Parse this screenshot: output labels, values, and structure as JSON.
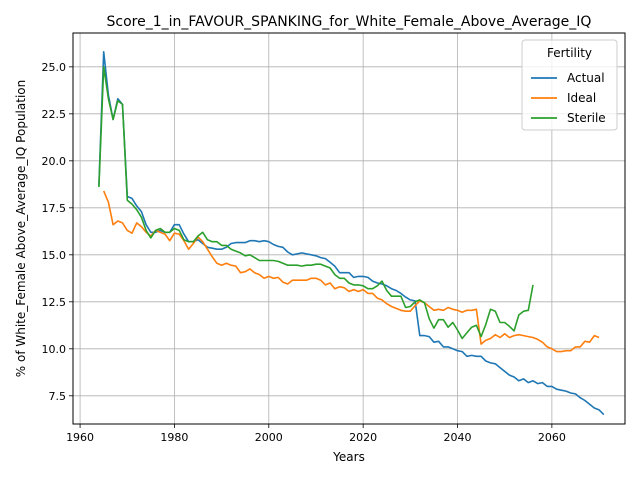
{
  "chart_data": {
    "type": "line",
    "title": "Score_1_in_FAVOUR_SPANKING_for_White_Female_Above_Average_IQ",
    "xlabel": "Years",
    "ylabel": "% of White_Female Above_Average_IQ Population",
    "xlim": [
      1958.5,
      2075.5
    ],
    "ylim": [
      6.0,
      26.8
    ],
    "xticks": [
      1960,
      1980,
      2000,
      2020,
      2040,
      2060
    ],
    "yticks": [
      7.5,
      10.0,
      12.5,
      15.0,
      17.5,
      20.0,
      22.5,
      25.0
    ],
    "ytick_labels": [
      "7.5",
      "10.0",
      "12.5",
      "15.0",
      "17.5",
      "20.0",
      "22.5",
      "25.0"
    ],
    "grid": true,
    "legend": {
      "title": "Fertility",
      "placement": "top-right"
    },
    "series": [
      {
        "name": "Actual",
        "color": "#1f77b4",
        "points": [
          [
            1964,
            18.7
          ],
          [
            1965,
            25.8
          ],
          [
            1966,
            23.5
          ],
          [
            1967,
            22.2
          ],
          [
            1968,
            23.3
          ],
          [
            1969,
            23.0
          ],
          [
            1970,
            18.1
          ],
          [
            1971,
            18.0
          ],
          [
            1972,
            17.6
          ],
          [
            1973,
            17.3
          ],
          [
            1974,
            16.6
          ],
          [
            1975,
            16.2
          ],
          [
            1976,
            16.2
          ],
          [
            1977,
            16.3
          ],
          [
            1978,
            16.2
          ],
          [
            1979,
            16.2
          ],
          [
            1980,
            16.6
          ],
          [
            1981,
            16.6
          ],
          [
            1982,
            16.1
          ],
          [
            1983,
            15.7
          ],
          [
            1984,
            15.7
          ],
          [
            1985,
            15.8
          ],
          [
            1986,
            15.6
          ],
          [
            1987,
            15.4
          ],
          [
            1988,
            15.35
          ],
          [
            1989,
            15.3
          ],
          [
            1990,
            15.3
          ],
          [
            1991,
            15.4
          ],
          [
            1992,
            15.6
          ],
          [
            1993,
            15.65
          ],
          [
            1994,
            15.65
          ],
          [
            1995,
            15.65
          ],
          [
            1996,
            15.75
          ],
          [
            1997,
            15.75
          ],
          [
            1998,
            15.7
          ],
          [
            1999,
            15.75
          ],
          [
            2000,
            15.7
          ],
          [
            2001,
            15.55
          ],
          [
            2002,
            15.45
          ],
          [
            2003,
            15.4
          ],
          [
            2004,
            15.15
          ],
          [
            2005,
            15.0
          ],
          [
            2006,
            15.05
          ],
          [
            2007,
            15.1
          ],
          [
            2008,
            15.05
          ],
          [
            2009,
            15.0
          ],
          [
            2010,
            14.95
          ],
          [
            2011,
            14.85
          ],
          [
            2012,
            14.8
          ],
          [
            2013,
            14.6
          ],
          [
            2014,
            14.4
          ],
          [
            2015,
            14.05
          ],
          [
            2016,
            14.05
          ],
          [
            2017,
            14.05
          ],
          [
            2018,
            13.8
          ],
          [
            2019,
            13.85
          ],
          [
            2020,
            13.85
          ],
          [
            2021,
            13.8
          ],
          [
            2022,
            13.6
          ],
          [
            2023,
            13.5
          ],
          [
            2024,
            13.45
          ],
          [
            2025,
            13.35
          ],
          [
            2026,
            13.2
          ],
          [
            2027,
            13.1
          ],
          [
            2028,
            12.95
          ],
          [
            2029,
            12.75
          ],
          [
            2030,
            12.6
          ],
          [
            2031,
            12.55
          ],
          [
            2032,
            10.7
          ],
          [
            2033,
            10.7
          ],
          [
            2034,
            10.65
          ],
          [
            2035,
            10.35
          ],
          [
            2036,
            10.4
          ],
          [
            2037,
            10.1
          ],
          [
            2038,
            10.1
          ],
          [
            2039,
            10.0
          ],
          [
            2040,
            9.9
          ],
          [
            2041,
            9.85
          ],
          [
            2042,
            9.6
          ],
          [
            2043,
            9.65
          ],
          [
            2044,
            9.6
          ],
          [
            2045,
            9.6
          ],
          [
            2046,
            9.35
          ],
          [
            2047,
            9.25
          ],
          [
            2048,
            9.2
          ],
          [
            2049,
            9.0
          ],
          [
            2050,
            8.8
          ],
          [
            2051,
            8.6
          ],
          [
            2052,
            8.5
          ],
          [
            2053,
            8.3
          ],
          [
            2054,
            8.4
          ],
          [
            2055,
            8.2
          ],
          [
            2056,
            8.3
          ],
          [
            2057,
            8.15
          ],
          [
            2058,
            8.2
          ],
          [
            2059,
            8.0
          ],
          [
            2060,
            8.0
          ],
          [
            2061,
            7.85
          ],
          [
            2062,
            7.8
          ],
          [
            2063,
            7.75
          ],
          [
            2064,
            7.65
          ],
          [
            2065,
            7.6
          ],
          [
            2066,
            7.4
          ],
          [
            2067,
            7.25
          ],
          [
            2068,
            7.05
          ],
          [
            2069,
            6.85
          ],
          [
            2070,
            6.75
          ],
          [
            2071,
            6.5
          ]
        ]
      },
      {
        "name": "Ideal",
        "color": "#ff7f0e",
        "points": [
          [
            1965,
            18.4
          ],
          [
            1966,
            17.8
          ],
          [
            1967,
            16.6
          ],
          [
            1968,
            16.8
          ],
          [
            1969,
            16.7
          ],
          [
            1970,
            16.3
          ],
          [
            1971,
            16.15
          ],
          [
            1972,
            16.7
          ],
          [
            1973,
            16.5
          ],
          [
            1974,
            16.2
          ],
          [
            1975,
            16.0
          ],
          [
            1976,
            16.3
          ],
          [
            1977,
            16.2
          ],
          [
            1978,
            16.1
          ],
          [
            1979,
            15.75
          ],
          [
            1980,
            16.15
          ],
          [
            1981,
            16.1
          ],
          [
            1982,
            15.75
          ],
          [
            1983,
            15.3
          ],
          [
            1984,
            15.6
          ],
          [
            1985,
            15.95
          ],
          [
            1986,
            15.7
          ],
          [
            1987,
            15.3
          ],
          [
            1988,
            14.9
          ],
          [
            1989,
            14.55
          ],
          [
            1990,
            14.45
          ],
          [
            1991,
            14.55
          ],
          [
            1992,
            14.45
          ],
          [
            1993,
            14.4
          ],
          [
            1994,
            14.05
          ],
          [
            1995,
            14.1
          ],
          [
            1996,
            14.25
          ],
          [
            1997,
            14.05
          ],
          [
            1998,
            13.95
          ],
          [
            1999,
            13.75
          ],
          [
            2000,
            13.85
          ],
          [
            2001,
            13.75
          ],
          [
            2002,
            13.8
          ],
          [
            2003,
            13.55
          ],
          [
            2004,
            13.45
          ],
          [
            2005,
            13.65
          ],
          [
            2006,
            13.65
          ],
          [
            2007,
            13.65
          ],
          [
            2008,
            13.65
          ],
          [
            2009,
            13.75
          ],
          [
            2010,
            13.75
          ],
          [
            2011,
            13.65
          ],
          [
            2012,
            13.4
          ],
          [
            2013,
            13.5
          ],
          [
            2014,
            13.2
          ],
          [
            2015,
            13.3
          ],
          [
            2016,
            13.25
          ],
          [
            2017,
            13.05
          ],
          [
            2018,
            13.15
          ],
          [
            2019,
            13.05
          ],
          [
            2020,
            13.15
          ],
          [
            2021,
            12.95
          ],
          [
            2022,
            12.95
          ],
          [
            2023,
            12.7
          ],
          [
            2024,
            12.6
          ],
          [
            2025,
            12.4
          ],
          [
            2026,
            12.25
          ],
          [
            2027,
            12.15
          ],
          [
            2028,
            12.05
          ],
          [
            2029,
            12.0
          ],
          [
            2030,
            12.0
          ],
          [
            2031,
            12.3
          ],
          [
            2032,
            12.55
          ],
          [
            2033,
            12.45
          ],
          [
            2034,
            12.25
          ],
          [
            2035,
            12.05
          ],
          [
            2036,
            12.1
          ],
          [
            2037,
            12.05
          ],
          [
            2038,
            12.2
          ],
          [
            2039,
            12.1
          ],
          [
            2040,
            12.05
          ],
          [
            2041,
            11.95
          ],
          [
            2042,
            12.05
          ],
          [
            2043,
            12.05
          ],
          [
            2044,
            12.1
          ],
          [
            2045,
            10.25
          ],
          [
            2046,
            10.45
          ],
          [
            2047,
            10.55
          ],
          [
            2048,
            10.75
          ],
          [
            2049,
            10.6
          ],
          [
            2050,
            10.8
          ],
          [
            2051,
            10.6
          ],
          [
            2052,
            10.7
          ],
          [
            2053,
            10.75
          ],
          [
            2054,
            10.7
          ],
          [
            2055,
            10.65
          ],
          [
            2056,
            10.6
          ],
          [
            2057,
            10.5
          ],
          [
            2058,
            10.35
          ],
          [
            2059,
            10.1
          ],
          [
            2060,
            10.0
          ],
          [
            2061,
            9.85
          ],
          [
            2062,
            9.85
          ],
          [
            2063,
            9.9
          ],
          [
            2064,
            9.9
          ],
          [
            2065,
            10.1
          ],
          [
            2066,
            10.1
          ],
          [
            2067,
            10.4
          ],
          [
            2068,
            10.35
          ],
          [
            2069,
            10.7
          ],
          [
            2070,
            10.6
          ]
        ]
      },
      {
        "name": "Sterile",
        "color": "#2ca02c",
        "points": [
          [
            1964,
            18.6
          ],
          [
            1965,
            25.0
          ],
          [
            1966,
            23.3
          ],
          [
            1967,
            22.2
          ],
          [
            1968,
            23.2
          ],
          [
            1969,
            23.0
          ],
          [
            1970,
            17.9
          ],
          [
            1971,
            17.7
          ],
          [
            1972,
            17.4
          ],
          [
            1973,
            17.0
          ],
          [
            1974,
            16.3
          ],
          [
            1975,
            15.9
          ],
          [
            1976,
            16.3
          ],
          [
            1977,
            16.4
          ],
          [
            1978,
            16.2
          ],
          [
            1979,
            16.2
          ],
          [
            1980,
            16.4
          ],
          [
            1981,
            16.3
          ],
          [
            1982,
            15.8
          ],
          [
            1983,
            15.7
          ],
          [
            1984,
            15.7
          ],
          [
            1985,
            16.0
          ],
          [
            1986,
            16.2
          ],
          [
            1987,
            15.8
          ],
          [
            1988,
            15.7
          ],
          [
            1989,
            15.7
          ],
          [
            1990,
            15.5
          ],
          [
            1991,
            15.5
          ],
          [
            1992,
            15.3
          ],
          [
            1993,
            15.2
          ],
          [
            1994,
            15.1
          ],
          [
            1995,
            14.95
          ],
          [
            1996,
            15.0
          ],
          [
            1997,
            14.85
          ],
          [
            1998,
            14.7
          ],
          [
            1999,
            14.7
          ],
          [
            2000,
            14.7
          ],
          [
            2001,
            14.7
          ],
          [
            2002,
            14.65
          ],
          [
            2003,
            14.55
          ],
          [
            2004,
            14.45
          ],
          [
            2005,
            14.45
          ],
          [
            2006,
            14.45
          ],
          [
            2007,
            14.4
          ],
          [
            2008,
            14.45
          ],
          [
            2009,
            14.45
          ],
          [
            2010,
            14.5
          ],
          [
            2011,
            14.5
          ],
          [
            2012,
            14.4
          ],
          [
            2013,
            14.3
          ],
          [
            2014,
            13.95
          ],
          [
            2015,
            13.75
          ],
          [
            2016,
            13.75
          ],
          [
            2017,
            13.5
          ],
          [
            2018,
            13.4
          ],
          [
            2019,
            13.4
          ],
          [
            2020,
            13.35
          ],
          [
            2021,
            13.2
          ],
          [
            2022,
            13.2
          ],
          [
            2023,
            13.35
          ],
          [
            2024,
            13.6
          ],
          [
            2025,
            13.1
          ],
          [
            2026,
            12.8
          ],
          [
            2027,
            12.8
          ],
          [
            2028,
            12.8
          ],
          [
            2029,
            12.2
          ],
          [
            2030,
            12.25
          ],
          [
            2031,
            12.5
          ],
          [
            2032,
            12.6
          ],
          [
            2033,
            12.45
          ],
          [
            2034,
            11.6
          ],
          [
            2035,
            11.1
          ],
          [
            2036,
            11.55
          ],
          [
            2037,
            11.55
          ],
          [
            2038,
            11.15
          ],
          [
            2039,
            11.4
          ],
          [
            2040,
            11.0
          ],
          [
            2041,
            10.55
          ],
          [
            2042,
            10.85
          ],
          [
            2043,
            11.15
          ],
          [
            2044,
            11.25
          ],
          [
            2045,
            10.65
          ],
          [
            2046,
            11.3
          ],
          [
            2047,
            12.1
          ],
          [
            2048,
            12.0
          ],
          [
            2049,
            11.4
          ],
          [
            2050,
            11.4
          ],
          [
            2051,
            11.2
          ],
          [
            2052,
            10.95
          ],
          [
            2053,
            11.8
          ],
          [
            2054,
            12.0
          ],
          [
            2055,
            12.05
          ],
          [
            2056,
            13.4
          ]
        ]
      }
    ]
  }
}
